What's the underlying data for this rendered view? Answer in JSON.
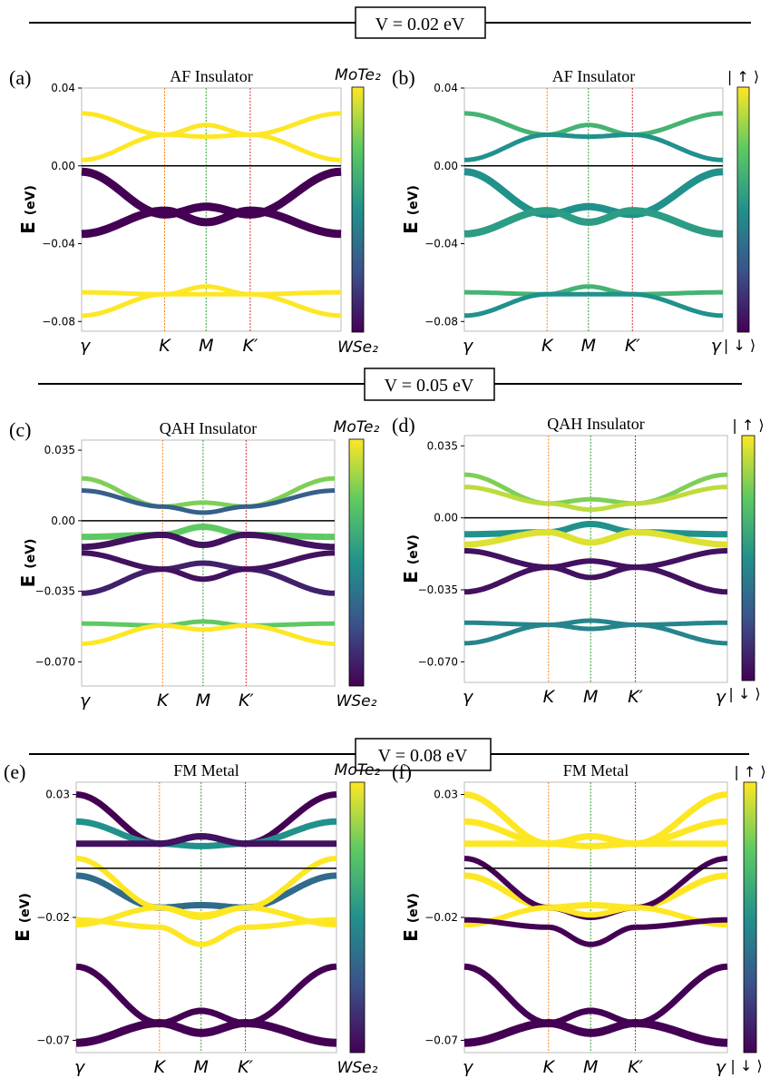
{
  "figure": {
    "sections": [
      {
        "label": "V = 0.02 eV"
      },
      {
        "label": "V = 0.05 eV"
      },
      {
        "label": "V = 0.08 eV"
      }
    ],
    "colorbar_layer": {
      "top": "MoTe₂",
      "bottom": "WSe₂"
    },
    "colorbar_spin": {
      "top": "| ↑ ⟩",
      "bottom": "| ↓ ⟩"
    },
    "colormap": [
      "#440154",
      "#3b528b",
      "#21918c",
      "#5ec962",
      "#fde725"
    ]
  },
  "chart_data": [
    {
      "panel": "(a)",
      "type": "line",
      "title": "AF Insulator",
      "ylabel": "E (eV)",
      "ylim": [
        -0.085,
        0.04
      ],
      "yticks": [
        0.04,
        0.0,
        -0.04,
        -0.08
      ],
      "ytick_labels": [
        "0.04",
        "0.00",
        "−0.04",
        "−0.08"
      ],
      "xticks": [
        "γ",
        "K",
        "M",
        "K′"
      ],
      "x_label_end": "",
      "colorbar": "layer",
      "series": [
        {
          "name": "band1",
          "values": [
            0.027,
            0.016,
            0.021,
            0.016,
            0.027
          ],
          "color": 1.0,
          "width": 5
        },
        {
          "name": "band2",
          "values": [
            0.003,
            0.016,
            0.015,
            0.016,
            0.003
          ],
          "color": 1.0,
          "width": 5
        },
        {
          "name": "band3",
          "values": [
            -0.003,
            -0.025,
            -0.021,
            -0.025,
            -0.003
          ],
          "color": 0.0,
          "width": 9
        },
        {
          "name": "band4",
          "values": [
            -0.035,
            -0.023,
            -0.029,
            -0.023,
            -0.035
          ],
          "color": 0.0,
          "width": 9
        },
        {
          "name": "band5",
          "values": [
            -0.065,
            -0.066,
            -0.062,
            -0.066,
            -0.065
          ],
          "color": 1.0,
          "width": 5
        },
        {
          "name": "band6",
          "values": [
            -0.077,
            -0.066,
            -0.066,
            -0.066,
            -0.077
          ],
          "color": 1.0,
          "width": 5
        }
      ]
    },
    {
      "panel": "(b)",
      "type": "line",
      "title": "AF Insulator",
      "ylabel": "E (eV)",
      "ylim": [
        -0.085,
        0.04
      ],
      "yticks": [
        0.04,
        0.0,
        -0.04,
        -0.08
      ],
      "ytick_labels": [
        "0.04",
        "0.00",
        "−0.04",
        "−0.08"
      ],
      "xticks": [
        "γ",
        "K",
        "M",
        "K′"
      ],
      "x_label_end": "γ",
      "colorbar": "spin",
      "series": [
        {
          "name": "band1",
          "values": [
            0.027,
            0.016,
            0.021,
            0.016,
            0.027
          ],
          "color": 0.65,
          "width": 5
        },
        {
          "name": "band2",
          "values": [
            0.003,
            0.016,
            0.015,
            0.016,
            0.003
          ],
          "color": 0.5,
          "width": 5
        },
        {
          "name": "band3",
          "values": [
            -0.003,
            -0.025,
            -0.021,
            -0.025,
            -0.003
          ],
          "color": 0.5,
          "width": 8
        },
        {
          "name": "band4",
          "values": [
            -0.035,
            -0.023,
            -0.029,
            -0.023,
            -0.035
          ],
          "color": 0.55,
          "width": 8
        },
        {
          "name": "band5",
          "values": [
            -0.065,
            -0.066,
            -0.062,
            -0.066,
            -0.065
          ],
          "color": 0.65,
          "width": 5
        },
        {
          "name": "band6",
          "values": [
            -0.077,
            -0.066,
            -0.066,
            -0.066,
            -0.077
          ],
          "color": 0.5,
          "width": 5
        }
      ]
    },
    {
      "panel": "(c)",
      "type": "line",
      "title": "QAH Insulator",
      "ylabel": "E (eV)",
      "ylim": [
        -0.082,
        0.04
      ],
      "yticks": [
        0.035,
        0.0,
        -0.035,
        -0.07
      ],
      "ytick_labels": [
        "0.035",
        "0.00",
        "−0.035",
        "−0.070"
      ],
      "xticks": [
        "γ",
        "K",
        "M",
        "K′"
      ],
      "x_label_end": "",
      "colorbar": "layer",
      "series": [
        {
          "name": "band1",
          "values": [
            0.021,
            0.007,
            0.009,
            0.007,
            0.021
          ],
          "color": 0.8,
          "width": 5
        },
        {
          "name": "band2",
          "values": [
            0.015,
            0.007,
            0.004,
            0.007,
            0.015
          ],
          "color": 0.3,
          "width": 5
        },
        {
          "name": "band3",
          "values": [
            -0.008,
            -0.007,
            -0.003,
            -0.007,
            -0.008
          ],
          "color": 0.75,
          "width": 7
        },
        {
          "name": "band4",
          "values": [
            -0.013,
            -0.007,
            -0.012,
            -0.007,
            -0.013
          ],
          "color": 0.05,
          "width": 7
        },
        {
          "name": "band5",
          "values": [
            -0.036,
            -0.024,
            -0.021,
            -0.024,
            -0.036
          ],
          "color": 0.1,
          "width": 6
        },
        {
          "name": "band6",
          "values": [
            -0.016,
            -0.024,
            -0.029,
            -0.024,
            -0.016
          ],
          "color": 0.05,
          "width": 6
        },
        {
          "name": "band7",
          "values": [
            -0.051,
            -0.052,
            -0.05,
            -0.052,
            -0.051
          ],
          "color": 0.75,
          "width": 5
        },
        {
          "name": "band8",
          "values": [
            -0.061,
            -0.052,
            -0.054,
            -0.052,
            -0.061
          ],
          "color": 1.0,
          "width": 5
        }
      ]
    },
    {
      "panel": "(d)",
      "type": "line",
      "title": "QAH Insulator",
      "ylabel": "E (eV)",
      "ylim": [
        -0.08,
        0.04
      ],
      "yticks": [
        0.035,
        0.0,
        -0.035,
        -0.07
      ],
      "ytick_labels": [
        "0.035",
        "0.00",
        "−0.035",
        "−0.070"
      ],
      "xticks": [
        "γ",
        "K",
        "M",
        "K′"
      ],
      "x_label_end": "γ",
      "colorbar": "spin",
      "series": [
        {
          "name": "band1",
          "values": [
            0.021,
            0.007,
            0.009,
            0.007,
            0.021
          ],
          "color": 0.8,
          "width": 5
        },
        {
          "name": "band2",
          "values": [
            0.015,
            0.007,
            0.004,
            0.007,
            0.015
          ],
          "color": 0.9,
          "width": 5
        },
        {
          "name": "band3",
          "values": [
            -0.008,
            -0.007,
            -0.003,
            -0.007,
            -0.008
          ],
          "color": 0.5,
          "width": 7
        },
        {
          "name": "band4",
          "values": [
            -0.013,
            -0.007,
            -0.012,
            -0.007,
            -0.013
          ],
          "color": 0.95,
          "width": 7
        },
        {
          "name": "band5",
          "values": [
            -0.036,
            -0.024,
            -0.021,
            -0.024,
            -0.036
          ],
          "color": 0.05,
          "width": 6
        },
        {
          "name": "band6",
          "values": [
            -0.016,
            -0.024,
            -0.029,
            -0.024,
            -0.016
          ],
          "color": 0.05,
          "width": 6
        },
        {
          "name": "band7",
          "values": [
            -0.051,
            -0.052,
            -0.05,
            -0.052,
            -0.051
          ],
          "color": 0.45,
          "width": 5
        },
        {
          "name": "band8",
          "values": [
            -0.061,
            -0.052,
            -0.054,
            -0.052,
            -0.061
          ],
          "color": 0.45,
          "width": 5
        }
      ]
    },
    {
      "panel": "(e)",
      "type": "line",
      "title": "FM Metal",
      "ylabel": "E (eV)",
      "ylim": [
        -0.075,
        0.035
      ],
      "yticks": [
        0.03,
        -0.02,
        -0.07
      ],
      "ytick_labels": [
        "0.03",
        "−0.02",
        "−0.07"
      ],
      "xticks": [
        "γ",
        "K",
        "M",
        "K′"
      ],
      "x_label_end": "",
      "colorbar": "layer",
      "series": [
        {
          "name": "band1",
          "values": [
            0.03,
            0.01,
            0.013,
            0.01,
            0.03
          ],
          "color": 0.0,
          "width": 7
        },
        {
          "name": "band2",
          "values": [
            0.019,
            0.01,
            0.009,
            0.01,
            0.019
          ],
          "color": 0.5,
          "width": 7
        },
        {
          "name": "band3",
          "values": [
            0.01,
            0.01,
            0.013,
            0.01,
            0.01
          ],
          "color": 0.05,
          "width": 7
        },
        {
          "name": "band4",
          "values": [
            -0.003,
            -0.016,
            -0.015,
            -0.016,
            -0.003
          ],
          "color": 0.35,
          "width": 7
        },
        {
          "name": "band5",
          "values": [
            0.004,
            -0.016,
            -0.02,
            -0.016,
            0.004
          ],
          "color": 1.0,
          "width": 6
        },
        {
          "name": "band6",
          "values": [
            -0.023,
            -0.016,
            -0.019,
            -0.016,
            -0.023
          ],
          "color": 1.0,
          "width": 6
        },
        {
          "name": "band7",
          "values": [
            -0.021,
            -0.024,
            -0.031,
            -0.024,
            -0.021
          ],
          "color": 1.0,
          "width": 6
        },
        {
          "name": "band8",
          "values": [
            -0.04,
            -0.063,
            -0.058,
            -0.063,
            -0.04
          ],
          "color": 0.0,
          "width": 7
        },
        {
          "name": "band9",
          "values": [
            -0.071,
            -0.063,
            -0.067,
            -0.063,
            -0.071
          ],
          "color": 0.0,
          "width": 9
        }
      ]
    },
    {
      "panel": "(f)",
      "type": "line",
      "title": "FM Metal",
      "ylabel": "E (eV)",
      "ylim": [
        -0.075,
        0.035
      ],
      "yticks": [
        0.03,
        -0.02,
        -0.07
      ],
      "ytick_labels": [
        "0.03",
        "−0.02",
        "−0.07"
      ],
      "xticks": [
        "γ",
        "K",
        "M",
        "K′"
      ],
      "x_label_end": "γ",
      "colorbar": "spin",
      "series": [
        {
          "name": "band1",
          "values": [
            0.03,
            0.01,
            0.013,
            0.01,
            0.03
          ],
          "color": 1.0,
          "width": 7
        },
        {
          "name": "band2",
          "values": [
            0.019,
            0.01,
            0.009,
            0.01,
            0.019
          ],
          "color": 1.0,
          "width": 7
        },
        {
          "name": "band3",
          "values": [
            0.01,
            0.01,
            0.013,
            0.01,
            0.01
          ],
          "color": 1.0,
          "width": 7
        },
        {
          "name": "band4",
          "values": [
            -0.003,
            -0.016,
            -0.015,
            -0.016,
            -0.003
          ],
          "color": 1.0,
          "width": 7
        },
        {
          "name": "band5",
          "values": [
            0.004,
            -0.016,
            -0.02,
            -0.016,
            0.004
          ],
          "color": 0.0,
          "width": 6
        },
        {
          "name": "band6",
          "values": [
            -0.023,
            -0.016,
            -0.019,
            -0.016,
            -0.023
          ],
          "color": 1.0,
          "width": 6
        },
        {
          "name": "band7",
          "values": [
            -0.021,
            -0.024,
            -0.031,
            -0.024,
            -0.021
          ],
          "color": 0.0,
          "width": 6
        },
        {
          "name": "band8",
          "values": [
            -0.04,
            -0.063,
            -0.058,
            -0.063,
            -0.04
          ],
          "color": 0.0,
          "width": 7
        },
        {
          "name": "band9",
          "values": [
            -0.071,
            -0.063,
            -0.067,
            -0.063,
            -0.071
          ],
          "color": 0.0,
          "width": 9
        }
      ]
    }
  ]
}
